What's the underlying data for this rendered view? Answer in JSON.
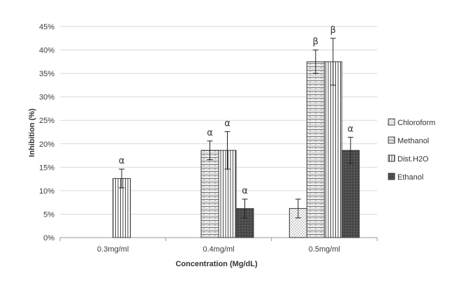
{
  "chart_data": {
    "type": "bar",
    "title": "",
    "xlabel": "Concentration (Mg/dL)",
    "ylabel": "Inhibition (%)",
    "ylim": [
      0,
      45
    ],
    "y_ticks": [
      "0%",
      "5%",
      "10%",
      "15%",
      "20%",
      "25%",
      "30%",
      "35%",
      "40%",
      "45%"
    ],
    "y_tick_values": [
      0,
      5,
      10,
      15,
      20,
      25,
      30,
      35,
      40,
      45
    ],
    "categories": [
      "0.3mg/ml",
      "0.4mg/ml",
      "0.5mg/ml"
    ],
    "grid": "horizontal",
    "legend_position": "right",
    "series": [
      {
        "name": "Chloroform",
        "values": [
          0,
          0,
          6.2
        ],
        "errors": [
          0,
          0,
          2.0
        ],
        "labels": [
          "",
          "",
          ""
        ],
        "pattern": "dots",
        "color": "#ffffff"
      },
      {
        "name": "Methanol",
        "values": [
          0,
          18.6,
          37.5
        ],
        "errors": [
          0,
          2.0,
          2.5
        ],
        "labels": [
          "",
          "α",
          "β"
        ],
        "pattern": "bricks",
        "color": "#ffffff"
      },
      {
        "name": "Dist.H2O",
        "values": [
          12.6,
          18.6,
          37.5
        ],
        "errors": [
          2.0,
          4.0,
          5.0
        ],
        "labels": [
          "α",
          "α",
          "β"
        ],
        "pattern": "vertical",
        "color": "#ffffff"
      },
      {
        "name": "Ethanol",
        "values": [
          0,
          6.2,
          18.6
        ],
        "errors": [
          0,
          2.0,
          2.8
        ],
        "labels": [
          "",
          "α",
          "α"
        ],
        "pattern": "dark",
        "color": "#4a4a4a"
      }
    ]
  }
}
